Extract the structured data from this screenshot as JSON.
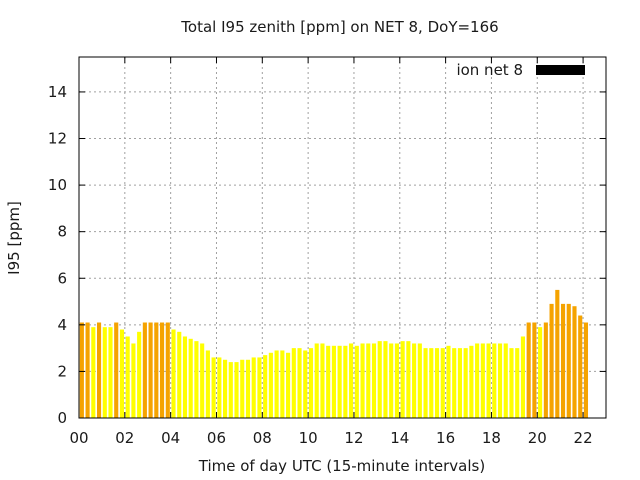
{
  "chart_data": {
    "type": "bar",
    "title": "Total I95 zenith [ppm] on NET 8, DoY=166",
    "xlabel": "Time of day UTC (15-minute intervals)",
    "ylabel": "I95 [ppm]",
    "xlim": [
      0,
      23
    ],
    "ylim": [
      0,
      15.5
    ],
    "xticks": [
      0,
      2,
      4,
      6,
      8,
      10,
      12,
      14,
      16,
      18,
      20,
      22
    ],
    "xtick_labels": [
      "00",
      "02",
      "04",
      "06",
      "08",
      "10",
      "12",
      "14",
      "16",
      "18",
      "20",
      "22"
    ],
    "yticks": [
      0,
      2,
      4,
      6,
      8,
      10,
      12,
      14
    ],
    "ytick_labels": [
      "0",
      "2",
      "4",
      "6",
      "8",
      "10",
      "12",
      "14"
    ],
    "grid": true,
    "legend": {
      "label": "ion net 8",
      "position": "top-right",
      "color": "#000000"
    },
    "colors": {
      "normal": "#ffff00",
      "elevated": "#f5a300"
    },
    "threshold": 4,
    "interval_hours": 0.25,
    "series": [
      {
        "values": [
          4.1,
          4.1,
          3.9,
          4.1,
          3.9,
          3.9,
          4.1,
          3.8,
          3.5,
          3.2,
          3.7,
          4.1,
          4.1,
          4.1,
          4.1,
          4.1,
          3.8,
          3.7,
          3.5,
          3.4,
          3.3,
          3.2,
          2.9,
          2.6,
          2.6,
          2.5,
          2.4,
          2.4,
          2.5,
          2.5,
          2.6,
          2.6,
          2.7,
          2.8,
          2.9,
          2.9,
          2.8,
          3.0,
          3.0,
          2.9,
          3.0,
          3.2,
          3.2,
          3.1,
          3.1,
          3.1,
          3.1,
          3.2,
          3.1,
          3.2,
          3.2,
          3.2,
          3.3,
          3.3,
          3.2,
          3.2,
          3.3,
          3.3,
          3.2,
          3.2,
          3.0,
          3.0,
          3.0,
          3.0,
          3.1,
          3.0,
          3.0,
          3.0,
          3.1,
          3.2,
          3.2,
          3.2,
          3.2,
          3.2,
          3.2,
          3.0,
          3.0,
          3.5,
          4.1,
          4.1,
          3.9,
          4.1,
          4.9,
          5.5,
          4.9,
          4.9,
          4.8,
          4.4,
          4.1
        ]
      }
    ]
  }
}
